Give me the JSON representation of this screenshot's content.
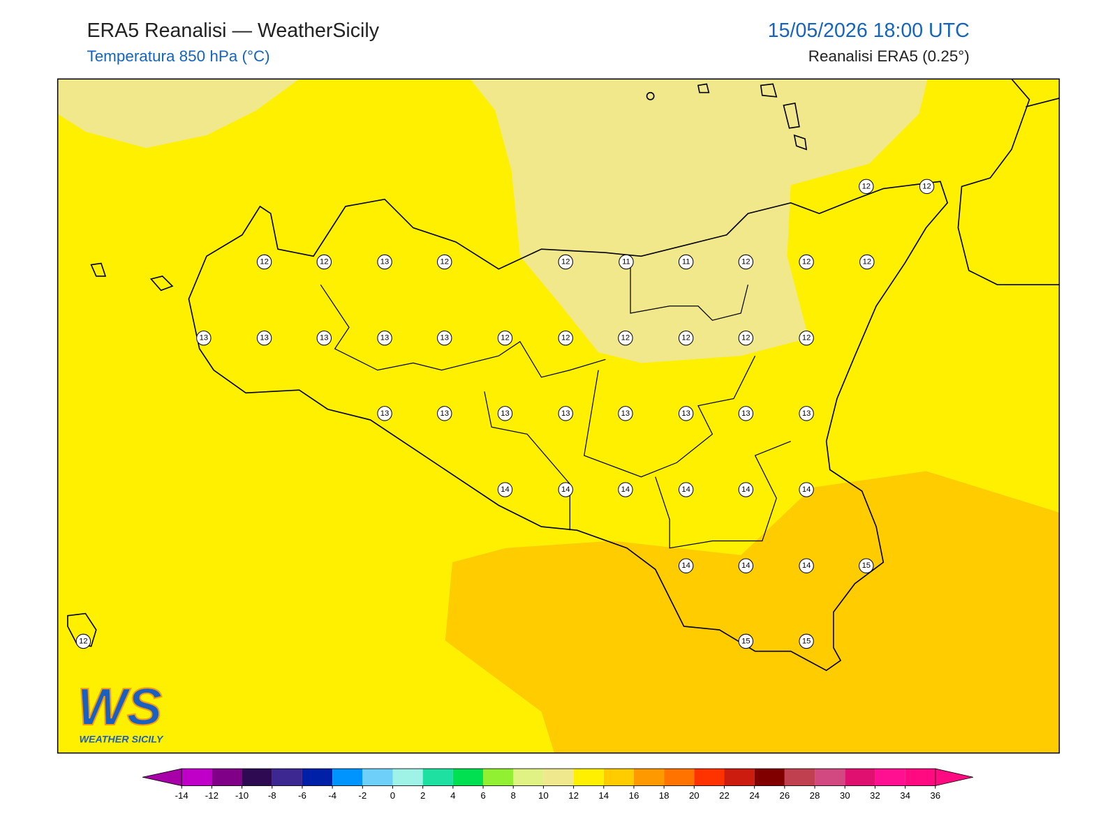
{
  "header": {
    "title": "ERA5 Reanalisi — WeatherSicily",
    "subtitle": "Temperatura 850 hPa (°C)",
    "datetime": "15/05/2026 18:00 UTC",
    "source": "Reanalisi ERA5 (0.25°)"
  },
  "grid_values": [
    12,
    12,
    12,
    12,
    13,
    12,
    12,
    11,
    11,
    12,
    12,
    12,
    13,
    13,
    13,
    13,
    13,
    12,
    12,
    12,
    12,
    12,
    12,
    13,
    13,
    13,
    13,
    13,
    13,
    13,
    13,
    14,
    14,
    14,
    14,
    14,
    14,
    14,
    14,
    14,
    15,
    12,
    15,
    15
  ],
  "colorbar": {
    "ticks": [
      -14,
      -12,
      -10,
      -8,
      -6,
      -4,
      -2,
      0,
      2,
      4,
      6,
      8,
      10,
      12,
      14,
      16,
      18,
      20,
      22,
      24,
      26,
      28,
      30,
      32,
      34,
      36
    ],
    "colors": [
      "#a800a8",
      "#c000c8",
      "#800088",
      "#2e0a52",
      "#3c2890",
      "#0020a8",
      "#0094ff",
      "#6ed0f8",
      "#9ef2e6",
      "#1ee0a0",
      "#00e050",
      "#92f032",
      "#e0f284",
      "#f0e88c",
      "#fff000",
      "#ffcc00",
      "#ff9900",
      "#ff7400",
      "#ff3300",
      "#cc1c10",
      "#800000",
      "#c04050",
      "#d24880",
      "#e01070",
      "#ff1090",
      "#ff0a80",
      "#ff0a80"
    ]
  },
  "logo": {
    "mark": "WS",
    "name": "WEATHER SICILY"
  }
}
